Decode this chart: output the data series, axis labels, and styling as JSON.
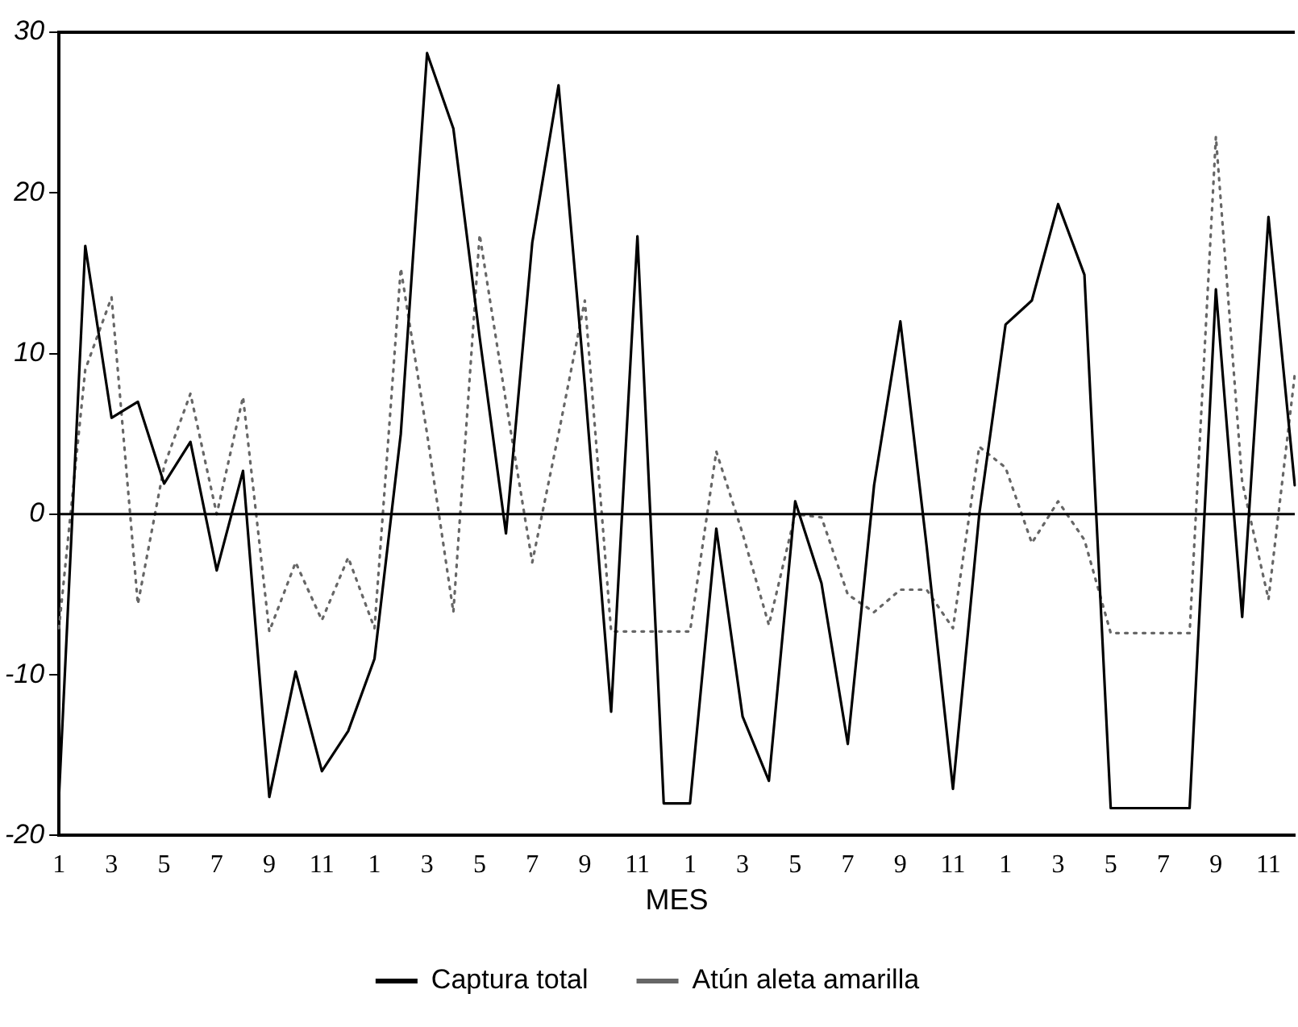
{
  "chart_data": {
    "type": "line",
    "xlabel": "MES",
    "categories": [
      "1",
      null,
      "3",
      null,
      "5",
      null,
      "7",
      null,
      "9",
      null,
      "11",
      null,
      "1",
      null,
      "3",
      null,
      "5",
      null,
      "7",
      null,
      "9",
      null,
      "11",
      null,
      "1",
      null,
      "3",
      null,
      "5",
      null,
      "7",
      null,
      "9",
      null,
      "11",
      null,
      "1",
      null,
      "3",
      null,
      "5",
      null,
      "7",
      null,
      "9",
      null,
      "11",
      null
    ],
    "series": [
      {
        "name": "Captura total",
        "color": "#000000",
        "line_style": "solid",
        "values": [
          -17.6,
          16.7,
          6,
          7,
          1.9,
          4.5,
          -3.5,
          2.7,
          -17.6,
          -9.8,
          -16,
          -13.5,
          -9,
          5,
          28.7,
          24,
          11,
          -1.2,
          16.9,
          26.7,
          8,
          -12.3,
          17.3,
          -18,
          -18,
          -0.9,
          -12.6,
          -16.6,
          0.8,
          -4.3,
          -14.3,
          1.8,
          12,
          -2,
          -17.1,
          0,
          11.8,
          13.3,
          19.3,
          14.9,
          -18.3,
          -18.3,
          -18.3,
          -18.3,
          14,
          -6.4,
          18.5,
          1.8
        ]
      },
      {
        "name": "Atún aleta amarilla",
        "color": "#666666",
        "line_style": "dotted",
        "values": [
          -7.1,
          9,
          13.5,
          -5.6,
          3,
          7.5,
          0,
          7.3,
          -7.3,
          -3,
          -6.6,
          -2.7,
          -7.1,
          15.3,
          5,
          -6.1,
          17.4,
          7,
          -3,
          5,
          13.3,
          -7.3,
          -7.3,
          -7.3,
          -7.3,
          3.9,
          -1.2,
          -6.9,
          0,
          -0.2,
          -5,
          -6.1,
          -4.7,
          -4.7,
          -7.1,
          4.2,
          2.9,
          -1.8,
          0.8,
          -1.6,
          -7.4,
          -7.4,
          -7.4,
          -7.4,
          23.5,
          2,
          -5.3,
          8.7
        ]
      }
    ],
    "ylim": [
      -20,
      30
    ],
    "yticks": [
      -20,
      -10,
      0,
      10,
      20,
      30
    ],
    "ref_lines": [
      {
        "axis": "y",
        "value": 0,
        "color": "#000000"
      }
    ],
    "grid": false,
    "legend": "bottom",
    "marker": "none"
  }
}
